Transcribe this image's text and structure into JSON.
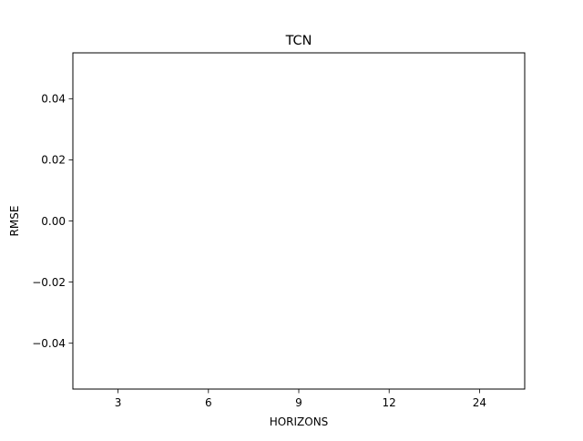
{
  "chart_data": {
    "type": "line",
    "title": "TCN",
    "xlabel": "HORIZONS",
    "ylabel": "RMSE",
    "categories": [
      "3",
      "6",
      "9",
      "12",
      "24"
    ],
    "series": [],
    "yticks": [
      -0.04,
      -0.02,
      0.0,
      0.02,
      0.04
    ],
    "ytick_labels": [
      "−0.04",
      "−0.02",
      "0.00",
      "0.02",
      "0.04"
    ],
    "ylim": [
      -0.055,
      0.055
    ],
    "xlim": [
      -0.5,
      4.5
    ],
    "grid": false,
    "legend": "none",
    "colors": {
      "axes": "#000000",
      "background": "#ffffff"
    }
  }
}
